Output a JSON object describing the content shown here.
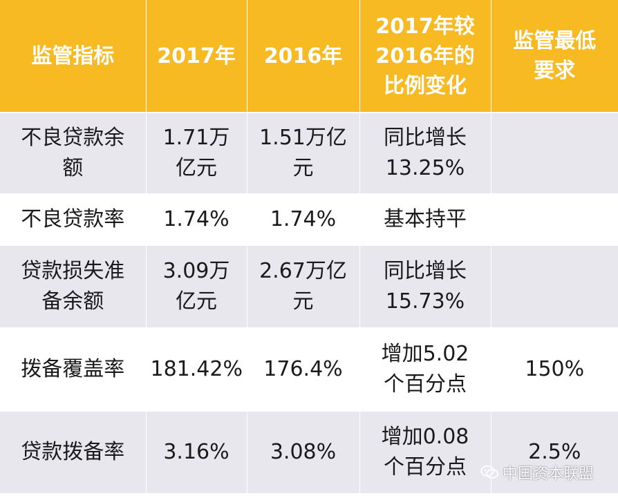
{
  "headers": [
    "监管指标",
    "2017年",
    "2016年",
    "2017年较\n2016年的\n比例变化",
    "监管最低\n要求"
  ],
  "rows": [
    [
      "不良贷款余\n额",
      "1.71万\n亿元",
      "1.51万亿\n元",
      "同比增长\n13.25%",
      ""
    ],
    [
      "不良贷款率",
      "1.74%",
      "1.74%",
      "基本持平",
      ""
    ],
    [
      "贷款损失准\n备余额",
      "3.09万\n亿元",
      "2.67万亿\n元",
      "同比增长\n15.73%",
      ""
    ],
    [
      "拨备覆盖率",
      "181.42%",
      "176.4%",
      "增加5.02\n个百分点",
      "150%"
    ],
    [
      "贷款拨备率",
      "3.16%",
      "3.08%",
      "增加0.08\n个百分点",
      "2.5%"
    ]
  ],
  "watermark": {
    "text": "中国资本联盟",
    "icon": "wechat-icon"
  },
  "colors": {
    "header_bg": "#F8BA23",
    "row_gray": "#e8e7ed",
    "row_white": "#ffffff"
  }
}
